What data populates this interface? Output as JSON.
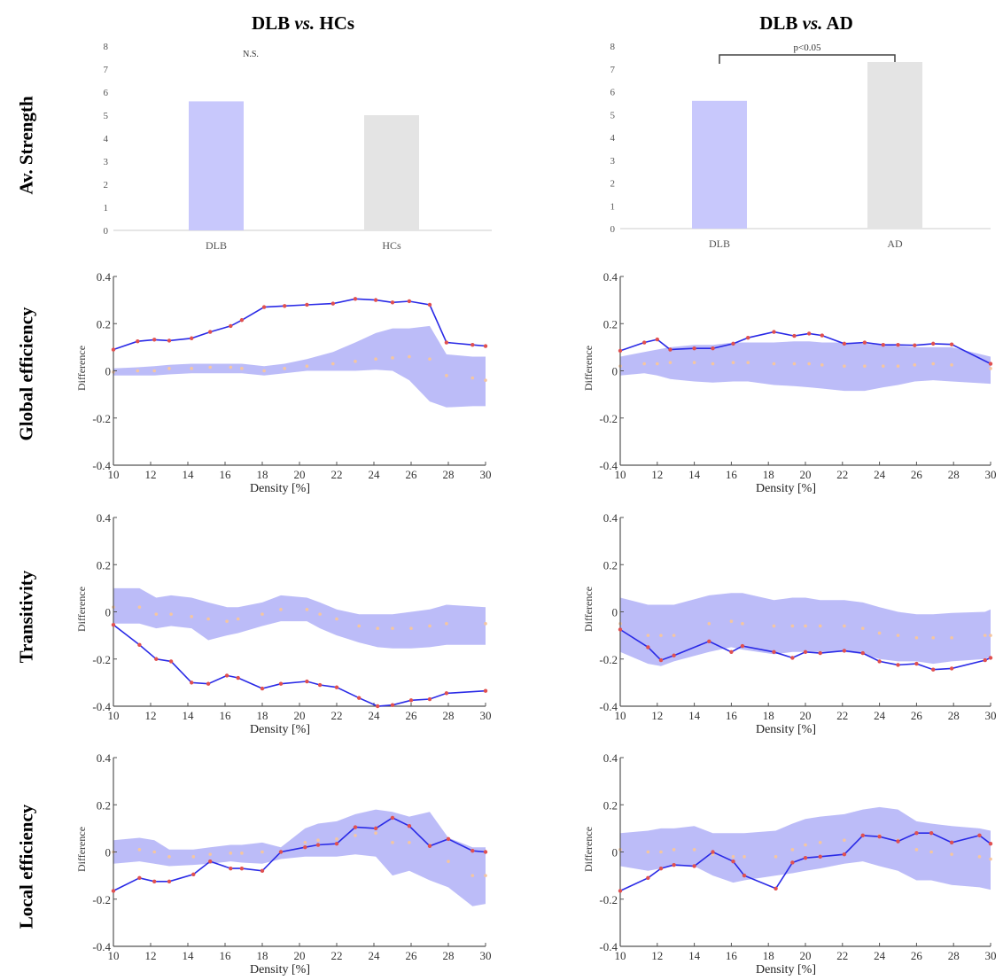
{
  "column_titles": [
    {
      "pre": "DLB ",
      "em": "vs.",
      "post": " HCs"
    },
    {
      "pre": "DLB ",
      "em": "vs.",
      "post": " AD"
    }
  ],
  "row_titles": [
    "Av. Strength",
    "Global efficiency",
    "Transitivity",
    "Local efficiency"
  ],
  "colors": {
    "dlb_bar": "#c8c8fc",
    "ctrl_bar": "#e4e4e4",
    "line": "#2a2ae6",
    "band": "#b8b8f8",
    "point": "#e05050",
    "null_dot": "#f5c6a0",
    "axis": "#555555"
  },
  "chart_data": [
    {
      "id": "strength-hcs",
      "type": "bar",
      "categories": [
        "DLB",
        "HCs"
      ],
      "values": [
        5.6,
        5.0
      ],
      "ylim": [
        0,
        8
      ],
      "yticks": [
        0,
        1,
        2,
        3,
        4,
        5,
        6,
        7,
        8
      ],
      "annotation": "N.S.",
      "bracket": false
    },
    {
      "id": "strength-ad",
      "type": "bar",
      "categories": [
        "DLB",
        "AD"
      ],
      "values": [
        5.6,
        7.3
      ],
      "ylim": [
        0,
        8
      ],
      "yticks": [
        0,
        1,
        2,
        3,
        4,
        5,
        6,
        7,
        8
      ],
      "annotation": "p<0.05",
      "bracket": true
    },
    {
      "id": "global-hcs",
      "type": "line",
      "xlabel": "Density [%]",
      "ylabel": "Difference",
      "xlim": [
        10,
        30
      ],
      "ylim": [
        -0.4,
        0.4
      ],
      "xticks": [
        10,
        12,
        14,
        16,
        18,
        20,
        22,
        24,
        26,
        28,
        30
      ],
      "yticks": [
        -0.4,
        -0.2,
        0,
        0.2,
        0.4
      ],
      "x": [
        10,
        11.3,
        12.2,
        13,
        14.2,
        15.2,
        16.3,
        16.9,
        18.1,
        19.2,
        20.4,
        21.8,
        23,
        24.1,
        25,
        25.9,
        27,
        27.9,
        29.3,
        30
      ],
      "y": [
        0.09,
        0.125,
        0.132,
        0.128,
        0.138,
        0.165,
        0.19,
        0.215,
        0.27,
        0.275,
        0.28,
        0.285,
        0.305,
        0.3,
        0.29,
        0.295,
        0.28,
        0.12,
        0.11,
        0.105
      ],
      "band_upper": [
        0.01,
        0.015,
        0.02,
        0.025,
        0.03,
        0.03,
        0.03,
        0.03,
        0.02,
        0.03,
        0.05,
        0.08,
        0.12,
        0.16,
        0.18,
        0.18,
        0.19,
        0.07,
        0.06,
        0.06
      ],
      "band_lower": [
        -0.02,
        -0.02,
        -0.02,
        -0.015,
        -0.01,
        -0.01,
        -0.01,
        -0.01,
        -0.02,
        -0.01,
        0,
        0,
        0,
        0.005,
        0,
        -0.04,
        -0.13,
        -0.155,
        -0.15,
        -0.15
      ],
      "null_mean": [
        -0.005,
        0,
        0,
        0.01,
        0.01,
        0.015,
        0.015,
        0.01,
        0,
        0.01,
        0.02,
        0.03,
        0.04,
        0.05,
        0.055,
        0.06,
        0.05,
        -0.02,
        -0.03,
        -0.04
      ]
    },
    {
      "id": "global-ad",
      "type": "line",
      "xlabel": "Density [%]",
      "ylabel": "Difference",
      "xlim": [
        10,
        30
      ],
      "ylim": [
        -0.4,
        0.4
      ],
      "xticks": [
        10,
        12,
        14,
        16,
        18,
        20,
        22,
        24,
        26,
        28,
        30
      ],
      "yticks": [
        -0.4,
        -0.2,
        0,
        0.2,
        0.4
      ],
      "x": [
        10,
        11.3,
        12,
        12.7,
        14,
        15,
        16.1,
        16.9,
        18.3,
        19.4,
        20.2,
        20.9,
        22.1,
        23.2,
        24.2,
        25,
        25.9,
        26.9,
        27.9,
        30
      ],
      "y": [
        0.085,
        0.12,
        0.133,
        0.09,
        0.095,
        0.095,
        0.115,
        0.14,
        0.165,
        0.148,
        0.158,
        0.15,
        0.115,
        0.12,
        0.11,
        0.11,
        0.108,
        0.115,
        0.112,
        0.03
      ],
      "band_upper": [
        0.06,
        0.08,
        0.09,
        0.1,
        0.11,
        0.11,
        0.12,
        0.12,
        0.12,
        0.125,
        0.125,
        0.12,
        0.12,
        0.115,
        0.11,
        0.105,
        0.1,
        0.1,
        0.1,
        0.06
      ],
      "band_lower": [
        -0.02,
        -0.01,
        -0.02,
        -0.035,
        -0.045,
        -0.05,
        -0.045,
        -0.045,
        -0.06,
        -0.065,
        -0.07,
        -0.075,
        -0.085,
        -0.085,
        -0.07,
        -0.06,
        -0.045,
        -0.04,
        -0.045,
        -0.055
      ],
      "null_mean": [
        0.02,
        0.03,
        0.03,
        0.035,
        0.035,
        0.03,
        0.035,
        0.035,
        0.03,
        0.03,
        0.03,
        0.025,
        0.02,
        0.02,
        0.02,
        0.02,
        0.025,
        0.03,
        0.025,
        0.01
      ]
    },
    {
      "id": "trans-hcs",
      "type": "line",
      "xlabel": "Density [%]",
      "ylabel": "Difference",
      "xlim": [
        10,
        30
      ],
      "ylim": [
        -0.4,
        0.4
      ],
      "xticks": [
        10,
        12,
        14,
        16,
        18,
        20,
        22,
        24,
        26,
        28,
        30
      ],
      "yticks": [
        -0.4,
        -0.2,
        0,
        0.2,
        0.4
      ],
      "x": [
        10,
        11.4,
        12.3,
        13.1,
        14.2,
        15.1,
        16.1,
        16.7,
        18,
        19,
        20.4,
        21.1,
        22,
        23.2,
        24.2,
        25,
        26,
        27,
        27.9,
        30
      ],
      "y": [
        -0.055,
        -0.14,
        -0.2,
        -0.21,
        -0.3,
        -0.305,
        -0.27,
        -0.28,
        -0.325,
        -0.305,
        -0.295,
        -0.31,
        -0.32,
        -0.365,
        -0.4,
        -0.395,
        -0.375,
        -0.37,
        -0.345,
        -0.335
      ],
      "band_upper": [
        0.1,
        0.1,
        0.06,
        0.07,
        0.06,
        0.04,
        0.02,
        0.02,
        0.04,
        0.07,
        0.06,
        0.04,
        0.01,
        -0.01,
        -0.01,
        -0.01,
        0,
        0.01,
        0.03,
        0.02
      ],
      "band_lower": [
        -0.05,
        -0.05,
        -0.07,
        -0.06,
        -0.07,
        -0.12,
        -0.1,
        -0.09,
        -0.06,
        -0.04,
        -0.04,
        -0.07,
        -0.1,
        -0.13,
        -0.15,
        -0.155,
        -0.155,
        -0.15,
        -0.14,
        -0.14
      ],
      "null_mean": [
        0.02,
        0.02,
        -0.01,
        -0.01,
        -0.02,
        -0.03,
        -0.04,
        -0.03,
        -0.01,
        0.01,
        0.01,
        -0.01,
        -0.03,
        -0.06,
        -0.07,
        -0.07,
        -0.07,
        -0.06,
        -0.05,
        -0.05
      ]
    },
    {
      "id": "trans-ad",
      "type": "line",
      "xlabel": "Density [%]",
      "ylabel": "Difference",
      "xlim": [
        10,
        30
      ],
      "ylim": [
        -0.4,
        0.4
      ],
      "xticks": [
        10,
        12,
        14,
        16,
        18,
        20,
        22,
        24,
        26,
        28,
        30
      ],
      "yticks": [
        -0.4,
        -0.2,
        0,
        0.2,
        0.4
      ],
      "x": [
        10,
        11.5,
        12.2,
        12.9,
        14.8,
        16,
        16.6,
        18.3,
        19.3,
        20,
        20.8,
        22.1,
        23.1,
        24,
        25,
        26,
        26.9,
        27.9,
        29.7,
        30
      ],
      "y": [
        -0.075,
        -0.15,
        -0.205,
        -0.185,
        -0.125,
        -0.17,
        -0.145,
        -0.17,
        -0.195,
        -0.17,
        -0.175,
        -0.165,
        -0.175,
        -0.21,
        -0.225,
        -0.22,
        -0.245,
        -0.24,
        -0.205,
        -0.195
      ],
      "band_upper": [
        0.06,
        0.03,
        0.03,
        0.03,
        0.07,
        0.08,
        0.08,
        0.05,
        0.06,
        0.06,
        0.05,
        0.05,
        0.04,
        0.02,
        0,
        -0.01,
        -0.01,
        -0.005,
        0,
        0.01
      ],
      "band_lower": [
        -0.17,
        -0.22,
        -0.23,
        -0.21,
        -0.17,
        -0.15,
        -0.16,
        -0.18,
        -0.17,
        -0.17,
        -0.17,
        -0.17,
        -0.18,
        -0.2,
        -0.21,
        -0.21,
        -0.22,
        -0.21,
        -0.2,
        -0.19
      ],
      "null_mean": [
        -0.05,
        -0.1,
        -0.1,
        -0.1,
        -0.05,
        -0.04,
        -0.05,
        -0.06,
        -0.06,
        -0.06,
        -0.06,
        -0.06,
        -0.07,
        -0.09,
        -0.1,
        -0.11,
        -0.11,
        -0.11,
        -0.1,
        -0.1
      ]
    },
    {
      "id": "local-hcs",
      "type": "line",
      "xlabel": "Density [%]",
      "ylabel": "Difference",
      "xlim": [
        10,
        30
      ],
      "ylim": [
        -0.4,
        0.4
      ],
      "xticks": [
        10,
        12,
        14,
        16,
        18,
        20,
        22,
        24,
        26,
        28,
        30
      ],
      "yticks": [
        -0.4,
        -0.2,
        0,
        0.2,
        0.4
      ],
      "x": [
        10,
        11.4,
        12.2,
        13,
        14.3,
        15.2,
        16.3,
        16.9,
        18,
        19,
        20.3,
        21,
        22,
        23,
        24.1,
        25,
        25.9,
        27,
        28,
        29.3,
        30
      ],
      "y": [
        -0.165,
        -0.11,
        -0.125,
        -0.125,
        -0.095,
        -0.04,
        -0.07,
        -0.07,
        -0.08,
        0,
        0.02,
        0.03,
        0.035,
        0.105,
        0.1,
        0.145,
        0.11,
        0.025,
        0.055,
        0.005,
        0
      ],
      "band_upper": [
        0.05,
        0.06,
        0.05,
        0.01,
        0.01,
        0.02,
        0.03,
        0.03,
        0.04,
        0.02,
        0.1,
        0.12,
        0.13,
        0.16,
        0.18,
        0.17,
        0.15,
        0.17,
        0.06,
        0.02,
        0.02
      ],
      "band_lower": [
        -0.05,
        -0.04,
        -0.05,
        -0.06,
        -0.055,
        -0.05,
        -0.04,
        -0.045,
        -0.05,
        -0.03,
        -0.02,
        -0.02,
        -0.02,
        -0.01,
        -0.02,
        -0.1,
        -0.08,
        -0.12,
        -0.15,
        -0.23,
        -0.22
      ],
      "null_mean": [
        0,
        0.01,
        0,
        -0.02,
        -0.02,
        -0.01,
        -0.005,
        -0.005,
        0,
        0,
        0.04,
        0.05,
        0.055,
        0.07,
        0.08,
        0.04,
        0.04,
        0.03,
        -0.04,
        -0.1,
        -0.1
      ]
    },
    {
      "id": "local-ad",
      "type": "line",
      "xlabel": "Density [%]",
      "ylabel": "Difference",
      "xlim": [
        10,
        30
      ],
      "ylim": [
        -0.4,
        0.4
      ],
      "xticks": [
        10,
        12,
        14,
        16,
        18,
        20,
        22,
        24,
        26,
        28,
        30
      ],
      "yticks": [
        -0.4,
        -0.2,
        0,
        0.2,
        0.4
      ],
      "x": [
        10,
        11.5,
        12.2,
        12.9,
        14,
        15,
        16.1,
        16.7,
        18.4,
        19.3,
        20,
        20.8,
        22.1,
        23.1,
        24,
        25,
        26,
        26.8,
        27.9,
        29.4,
        30
      ],
      "y": [
        -0.165,
        -0.11,
        -0.07,
        -0.055,
        -0.06,
        0,
        -0.04,
        -0.1,
        -0.155,
        -0.045,
        -0.025,
        -0.02,
        -0.01,
        0.07,
        0.065,
        0.045,
        0.08,
        0.08,
        0.04,
        0.07,
        0.035
      ],
      "band_upper": [
        0.08,
        0.09,
        0.1,
        0.1,
        0.11,
        0.08,
        0.08,
        0.08,
        0.09,
        0.12,
        0.14,
        0.15,
        0.16,
        0.18,
        0.19,
        0.18,
        0.13,
        0.12,
        0.11,
        0.1,
        0.09
      ],
      "band_lower": [
        -0.06,
        -0.08,
        -0.07,
        -0.06,
        -0.06,
        -0.1,
        -0.13,
        -0.12,
        -0.1,
        -0.09,
        -0.08,
        -0.07,
        -0.05,
        -0.04,
        -0.06,
        -0.08,
        -0.12,
        -0.12,
        -0.14,
        -0.15,
        -0.16
      ],
      "null_mean": [
        0.01,
        0,
        0,
        0.01,
        0.01,
        -0.01,
        -0.02,
        -0.02,
        -0.02,
        0.01,
        0.03,
        0.04,
        0.05,
        0.07,
        0.07,
        0.05,
        0.01,
        0,
        -0.01,
        -0.02,
        -0.03
      ]
    }
  ]
}
